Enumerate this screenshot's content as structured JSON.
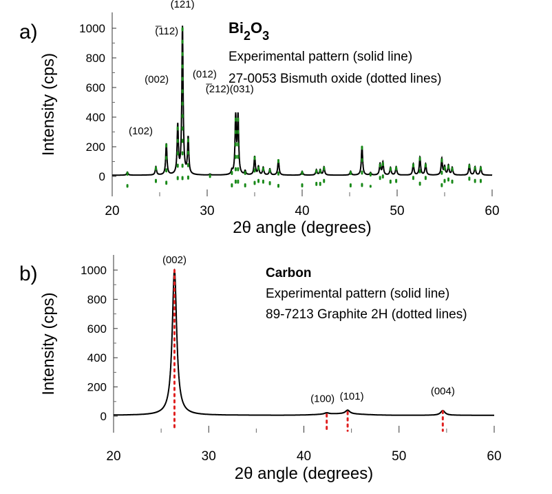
{
  "chart_data": [
    {
      "type": "line",
      "panel_label": "a)",
      "title": "Bi2O3",
      "legend_lines": [
        "Experimental pattern (solid line)",
        "27-0053 Bismuth oxide (dotted lines)"
      ],
      "xlabel": "2θ angle (degrees)",
      "ylabel": "Intensity (cps)",
      "xlim": [
        20,
        60
      ],
      "ylim": [
        0,
        1000
      ],
      "xticks": [
        "20",
        "30",
        "40",
        "50",
        "60"
      ],
      "yticks": [
        "0",
        "200",
        "400",
        "600",
        "800",
        "1000"
      ],
      "reference_color": "#1a8a1a",
      "line_color": "#000000",
      "peaks": [
        {
          "x": 21.6,
          "y": 25
        },
        {
          "x": 24.6,
          "y": 60
        },
        {
          "x": 25.7,
          "y": 215
        },
        {
          "x": 26.9,
          "y": 330
        },
        {
          "x": 27.4,
          "y": 1000
        },
        {
          "x": 28.0,
          "y": 250
        },
        {
          "x": 30.3,
          "y": 10
        },
        {
          "x": 32.6,
          "y": 30
        },
        {
          "x": 33.0,
          "y": 390
        },
        {
          "x": 33.25,
          "y": 390
        },
        {
          "x": 34.0,
          "y": 30
        },
        {
          "x": 35.0,
          "y": 130
        },
        {
          "x": 35.4,
          "y": 60
        },
        {
          "x": 35.9,
          "y": 55
        },
        {
          "x": 36.6,
          "y": 45
        },
        {
          "x": 37.5,
          "y": 110
        },
        {
          "x": 40.0,
          "y": 30
        },
        {
          "x": 41.5,
          "y": 40
        },
        {
          "x": 41.9,
          "y": 40
        },
        {
          "x": 42.3,
          "y": 60
        },
        {
          "x": 45.1,
          "y": 30
        },
        {
          "x": 46.3,
          "y": 200
        },
        {
          "x": 47.2,
          "y": 20
        },
        {
          "x": 48.2,
          "y": 80
        },
        {
          "x": 48.5,
          "y": 90
        },
        {
          "x": 49.3,
          "y": 55
        },
        {
          "x": 49.9,
          "y": 60
        },
        {
          "x": 51.7,
          "y": 80
        },
        {
          "x": 52.4,
          "y": 125
        },
        {
          "x": 53.0,
          "y": 80
        },
        {
          "x": 54.7,
          "y": 115
        },
        {
          "x": 55.0,
          "y": 60
        },
        {
          "x": 55.4,
          "y": 70
        },
        {
          "x": 55.8,
          "y": 55
        },
        {
          "x": 57.6,
          "y": 75
        },
        {
          "x": 58.2,
          "y": 60
        },
        {
          "x": 58.8,
          "y": 60
        }
      ],
      "annotations": [
        {
          "text": "(102)",
          "x": 24.6
        },
        {
          "text": "(002)",
          "x": 25.7
        },
        {
          "text": "(̅112)",
          "x": 26.9
        },
        {
          "text": "(̅121)",
          "x": 27.4
        },
        {
          "text": "(012)",
          "x": 28.0
        },
        {
          "text": "(̅212)(031)",
          "x": 33.1
        }
      ]
    },
    {
      "type": "line",
      "panel_label": "b)",
      "title": "Carbon",
      "legend_lines": [
        "Experimental pattern (solid line)",
        "89-7213 Graphite 2H (dotted lines)"
      ],
      "xlabel": "2θ angle (degrees)",
      "ylabel": "Intensity (cps)",
      "xlim": [
        20,
        60
      ],
      "ylim": [
        0,
        1000
      ],
      "xticks": [
        "20",
        "30",
        "40",
        "50",
        "60"
      ],
      "yticks": [
        "0",
        "200",
        "400",
        "600",
        "800",
        "1000"
      ],
      "reference_color": "#e02020",
      "line_color": "#000000",
      "peaks": [
        {
          "x": 26.4,
          "y": 1000
        },
        {
          "x": 42.4,
          "y": 12
        },
        {
          "x": 44.6,
          "y": 28
        },
        {
          "x": 54.6,
          "y": 35
        }
      ],
      "annotations": [
        {
          "text": "(002)",
          "x": 26.4
        },
        {
          "text": "(100)",
          "x": 42.4
        },
        {
          "text": "(101)",
          "x": 44.6
        },
        {
          "text": "(004)",
          "x": 54.6
        }
      ]
    }
  ]
}
